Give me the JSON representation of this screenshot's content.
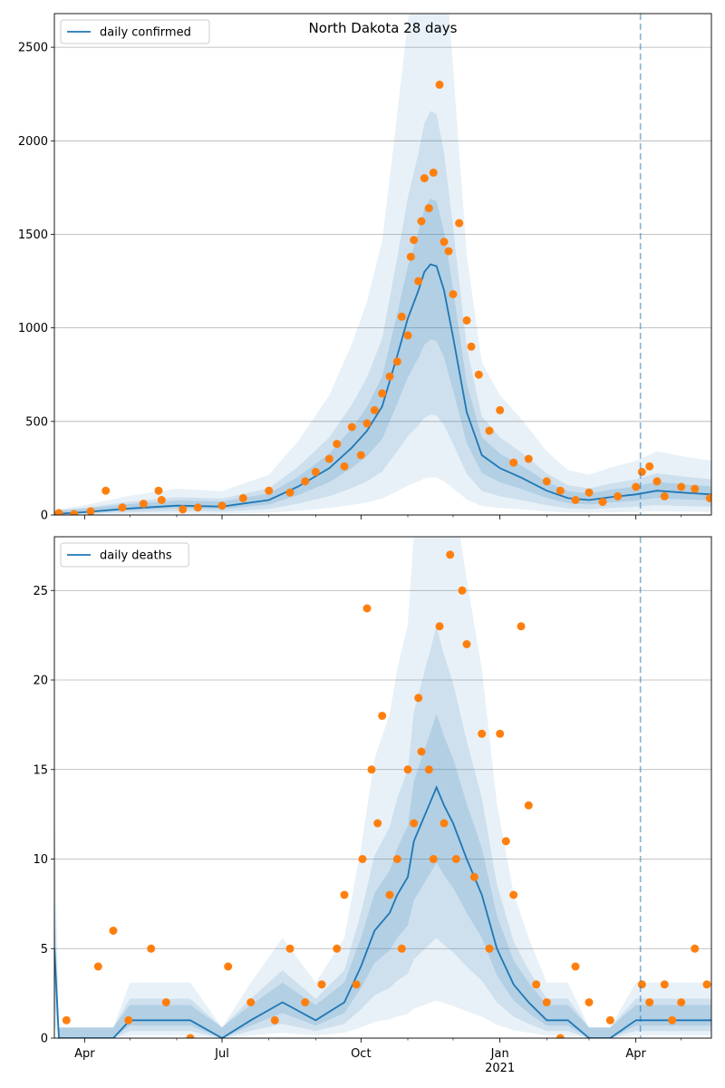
{
  "chart_data": [
    {
      "type": "line",
      "title": "North Dakota 28 days",
      "legend": {
        "label": "daily confirmed",
        "placement": "top-left"
      },
      "ylim": [
        0,
        2680
      ],
      "yticks": [
        0,
        500,
        1000,
        1500,
        2000,
        2500
      ],
      "xlim": [
        "2020-03-12",
        "2021-05-21"
      ],
      "grid": "horizontal",
      "forecast_start": "2021-04-04",
      "line": {
        "x": [
          "2020-03-12",
          "2020-04-01",
          "2020-05-01",
          "2020-06-01",
          "2020-07-01",
          "2020-08-01",
          "2020-08-20",
          "2020-09-10",
          "2020-09-25",
          "2020-10-05",
          "2020-10-15",
          "2020-10-25",
          "2020-11-01",
          "2020-11-08",
          "2020-11-12",
          "2020-11-16",
          "2020-11-20",
          "2020-11-25",
          "2020-12-01",
          "2020-12-10",
          "2020-12-20",
          "2021-01-01",
          "2021-01-15",
          "2021-02-01",
          "2021-02-15",
          "2021-03-01",
          "2021-03-15",
          "2021-04-01",
          "2021-04-15",
          "2021-05-01",
          "2021-05-21"
        ],
        "y": [
          5,
          15,
          35,
          50,
          45,
          80,
          150,
          250,
          360,
          450,
          580,
          850,
          1050,
          1200,
          1300,
          1340,
          1330,
          1200,
          950,
          550,
          320,
          250,
          200,
          130,
          90,
          80,
          95,
          110,
          130,
          120,
          110
        ]
      },
      "points": {
        "x": [
          "2020-03-15",
          "2020-03-25",
          "2020-04-05",
          "2020-04-15",
          "2020-04-26",
          "2020-05-10",
          "2020-05-20",
          "2020-05-22",
          "2020-06-05",
          "2020-06-15",
          "2020-07-01",
          "2020-07-15",
          "2020-08-01",
          "2020-08-15",
          "2020-08-25",
          "2020-09-01",
          "2020-09-10",
          "2020-09-15",
          "2020-09-20",
          "2020-09-25",
          "2020-10-01",
          "2020-10-05",
          "2020-10-10",
          "2020-10-15",
          "2020-10-20",
          "2020-10-25",
          "2020-10-28",
          "2020-11-01",
          "2020-11-03",
          "2020-11-05",
          "2020-11-08",
          "2020-11-10",
          "2020-11-12",
          "2020-11-15",
          "2020-11-18",
          "2020-11-22",
          "2020-11-25",
          "2020-11-28",
          "2020-12-01",
          "2020-12-05",
          "2020-12-10",
          "2020-12-13",
          "2020-12-18",
          "2020-12-25",
          "2021-01-01",
          "2021-01-10",
          "2021-01-20",
          "2021-02-01",
          "2021-02-10",
          "2021-02-20",
          "2021-03-01",
          "2021-03-10",
          "2021-03-20",
          "2021-04-01",
          "2021-04-05",
          "2021-04-10",
          "2021-04-15",
          "2021-04-20",
          "2021-05-01",
          "2021-05-10",
          "2021-05-20"
        ],
        "y": [
          10,
          5,
          20,
          130,
          40,
          60,
          130,
          80,
          30,
          40,
          50,
          90,
          130,
          120,
          180,
          230,
          300,
          380,
          260,
          470,
          320,
          490,
          560,
          650,
          740,
          820,
          1060,
          960,
          1380,
          1470,
          1250,
          1570,
          1800,
          1640,
          1830,
          2300,
          1460,
          1410,
          1180,
          1560,
          1040,
          900,
          750,
          450,
          560,
          280,
          300,
          180,
          130,
          80,
          120,
          70,
          100,
          150,
          230,
          260,
          180,
          100,
          150,
          140,
          90
        ]
      }
    },
    {
      "type": "line",
      "legend": {
        "label": "daily deaths",
        "placement": "top-left"
      },
      "ylim": [
        0,
        28
      ],
      "yticks": [
        0,
        5,
        10,
        15,
        20,
        25
      ],
      "xlim": [
        "2020-03-12",
        "2021-05-21"
      ],
      "xticks": [
        {
          "date": "2020-04-01",
          "label": "Apr"
        },
        {
          "date": "2020-07-01",
          "label": "Jul"
        },
        {
          "date": "2020-10-01",
          "label": "Oct"
        },
        {
          "date": "2021-01-01",
          "label": "Jan",
          "sublabel": "2021"
        },
        {
          "date": "2021-04-01",
          "label": "Apr"
        }
      ],
      "grid": "horizontal",
      "forecast_start": "2021-04-04",
      "line": {
        "x": [
          "2020-03-12",
          "2020-03-15",
          "2020-04-01",
          "2020-04-20",
          "2020-05-01",
          "2020-05-20",
          "2020-06-10",
          "2020-07-01",
          "2020-07-20",
          "2020-08-10",
          "2020-09-01",
          "2020-09-20",
          "2020-10-01",
          "2020-10-10",
          "2020-10-20",
          "2020-10-25",
          "2020-11-01",
          "2020-11-05",
          "2020-11-10",
          "2020-11-15",
          "2020-11-20",
          "2020-11-25",
          "2020-12-01",
          "2020-12-10",
          "2020-12-20",
          "2020-12-30",
          "2021-01-10",
          "2021-01-20",
          "2021-02-01",
          "2021-02-15",
          "2021-03-01",
          "2021-03-15",
          "2021-04-01",
          "2021-04-15",
          "2021-05-01",
          "2021-05-21"
        ],
        "y": [
          5,
          0,
          0,
          0,
          1,
          1,
          1,
          0,
          1,
          2,
          1,
          2,
          4,
          6,
          7,
          8,
          9,
          11,
          12,
          13,
          14,
          13,
          12,
          10,
          8,
          5,
          3,
          2,
          1,
          1,
          0,
          0,
          1,
          1,
          1,
          1
        ]
      },
      "points": {
        "x": [
          "2020-03-20",
          "2020-04-10",
          "2020-04-20",
          "2020-04-30",
          "2020-05-15",
          "2020-05-25",
          "2020-06-10",
          "2020-07-05",
          "2020-07-20",
          "2020-08-05",
          "2020-08-15",
          "2020-08-25",
          "2020-09-05",
          "2020-09-15",
          "2020-09-20",
          "2020-09-28",
          "2020-10-02",
          "2020-10-05",
          "2020-10-08",
          "2020-10-12",
          "2020-10-15",
          "2020-10-20",
          "2020-10-25",
          "2020-10-28",
          "2020-11-01",
          "2020-11-05",
          "2020-11-08",
          "2020-11-10",
          "2020-11-15",
          "2020-11-18",
          "2020-11-22",
          "2020-11-25",
          "2020-11-29",
          "2020-12-03",
          "2020-12-07",
          "2020-12-10",
          "2020-12-15",
          "2020-12-20",
          "2020-12-25",
          "2021-01-01",
          "2021-01-05",
          "2021-01-10",
          "2021-01-15",
          "2021-01-20",
          "2021-01-25",
          "2021-02-01",
          "2021-02-10",
          "2021-02-20",
          "2021-03-01",
          "2021-03-15",
          "2021-04-05",
          "2021-04-10",
          "2021-04-20",
          "2021-04-25",
          "2021-05-01",
          "2021-05-10",
          "2021-05-18"
        ],
        "y": [
          1,
          4,
          6,
          1,
          5,
          2,
          0,
          4,
          2,
          1,
          5,
          2,
          3,
          5,
          8,
          3,
          10,
          24,
          15,
          12,
          18,
          8,
          10,
          5,
          15,
          12,
          19,
          16,
          15,
          10,
          23,
          12,
          27,
          10,
          25,
          22,
          9,
          17,
          5,
          17,
          11,
          8,
          23,
          13,
          3,
          2,
          0,
          4,
          2,
          1,
          3,
          2,
          3,
          1,
          2,
          5,
          3
        ]
      }
    }
  ],
  "colors": {
    "line": "#1f77b4",
    "points": "#ff7f0e",
    "band": "#1f77b4",
    "forecast_line": "#1f77b4",
    "grid": "#b0b0b0"
  }
}
